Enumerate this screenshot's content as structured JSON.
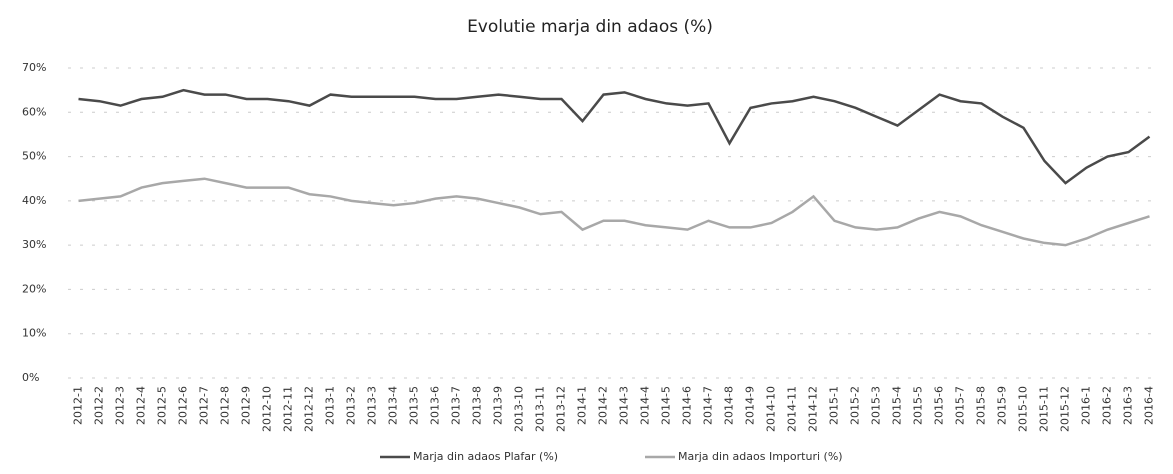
{
  "chart_data": {
    "type": "line",
    "title": "Evolutie marja din adaos (%)",
    "categories": [
      "2012-1",
      "2012-2",
      "2012-3",
      "2012-4",
      "2012-5",
      "2012-6",
      "2012-7",
      "2012-8",
      "2012-9",
      "2012-10",
      "2012-11",
      "2012-12",
      "2013-1",
      "2013-2",
      "2013-3",
      "2013-4",
      "2013-5",
      "2013-6",
      "2013-7",
      "2013-8",
      "2013-9",
      "2013-10",
      "2013-11",
      "2013-12",
      "2014-1",
      "2014-2",
      "2014-3",
      "2014-4",
      "2014-5",
      "2014-6",
      "2014-7",
      "2014-8",
      "2014-9",
      "2014-10",
      "2014-11",
      "2014-12",
      "2015-1",
      "2015-2",
      "2015-3",
      "2015-4",
      "2015-5",
      "2015-6",
      "2015-7",
      "2015-8",
      "2015-9",
      "2015-10",
      "2015-11",
      "2015-12",
      "2016-1",
      "2016-2",
      "2016-3",
      "2016-4"
    ],
    "series": [
      {
        "name": "Marja din adaos Plafar (%)",
        "color": "#4a4a4a",
        "values": [
          63,
          62.5,
          61.5,
          63,
          63.5,
          65,
          64,
          64,
          63,
          63,
          62.5,
          61.5,
          64,
          63.5,
          63.5,
          63.5,
          63.5,
          63,
          63,
          63.5,
          64,
          63.5,
          63,
          63,
          58,
          64,
          64.5,
          63,
          62,
          61.5,
          62,
          53,
          61,
          62,
          62.5,
          63.5,
          62.5,
          61,
          59,
          57,
          60.5,
          64,
          62.5,
          62,
          59,
          56.5,
          49,
          44,
          47.5,
          50,
          51,
          54.5
        ]
      },
      {
        "name": "Marja din adaos Importuri (%)",
        "color": "#a8a8a8",
        "values": [
          40,
          40.5,
          41,
          43,
          44,
          44.5,
          45,
          44,
          43,
          43,
          43,
          41.5,
          41,
          40,
          39.5,
          39,
          39.5,
          40.5,
          41,
          40.5,
          39.5,
          38.5,
          37,
          37.5,
          33.5,
          35.5,
          35.5,
          34.5,
          34,
          33.5,
          35.5,
          34,
          34,
          35,
          37.5,
          41,
          35.5,
          34,
          33.5,
          34,
          36,
          37.5,
          36.5,
          34.5,
          33,
          31.5,
          30.5,
          30,
          31.5,
          33.5,
          35,
          36.5
        ]
      }
    ],
    "ylim": [
      0,
      70
    ],
    "yticks": [
      {
        "value": 0,
        "label": "0%"
      },
      {
        "value": 10,
        "label": "10%"
      },
      {
        "value": 20,
        "label": "20%"
      },
      {
        "value": 30,
        "label": "30%"
      },
      {
        "value": 40,
        "label": "40%"
      },
      {
        "value": 50,
        "label": "50%"
      },
      {
        "value": 60,
        "label": "60%"
      },
      {
        "value": 70,
        "label": "70%"
      }
    ],
    "grid": true
  }
}
